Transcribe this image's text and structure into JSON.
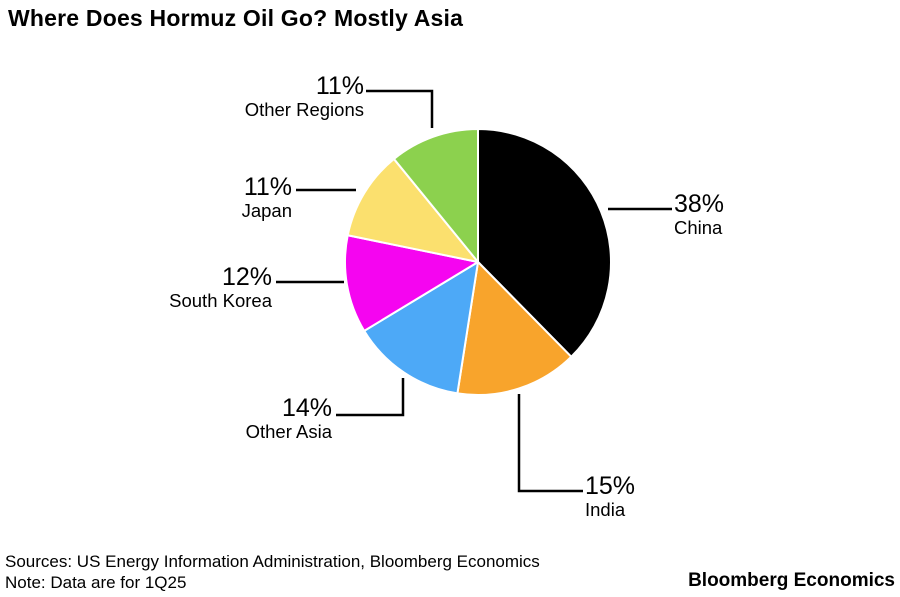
{
  "title": "Where Does Hormuz Oil Go? Mostly Asia",
  "chart_data": {
    "type": "pie",
    "title": "Where Does Hormuz Oil Go? Mostly Asia",
    "start_angle_deg": 0,
    "direction": "clockwise",
    "unit": "%",
    "slices": [
      {
        "name": "China",
        "value": 38,
        "label": "38%",
        "color": "#000000"
      },
      {
        "name": "India",
        "value": 15,
        "label": "15%",
        "color": "#F8A42C"
      },
      {
        "name": "Other Asia",
        "value": 14,
        "label": "14%",
        "color": "#4DA9F7"
      },
      {
        "name": "South Korea",
        "value": 12,
        "label": "12%",
        "color": "#F505F0"
      },
      {
        "name": "Japan",
        "value": 11,
        "label": "11%",
        "color": "#FBE06E"
      },
      {
        "name": "Other Regions",
        "value": 11,
        "label": "11%",
        "color": "#8CD14E"
      }
    ]
  },
  "footer": {
    "sources": "Sources: US Energy Information Administration, Bloomberg Economics",
    "note": "Note: Data are for 1Q25",
    "brand": "Bloomberg Economics"
  }
}
